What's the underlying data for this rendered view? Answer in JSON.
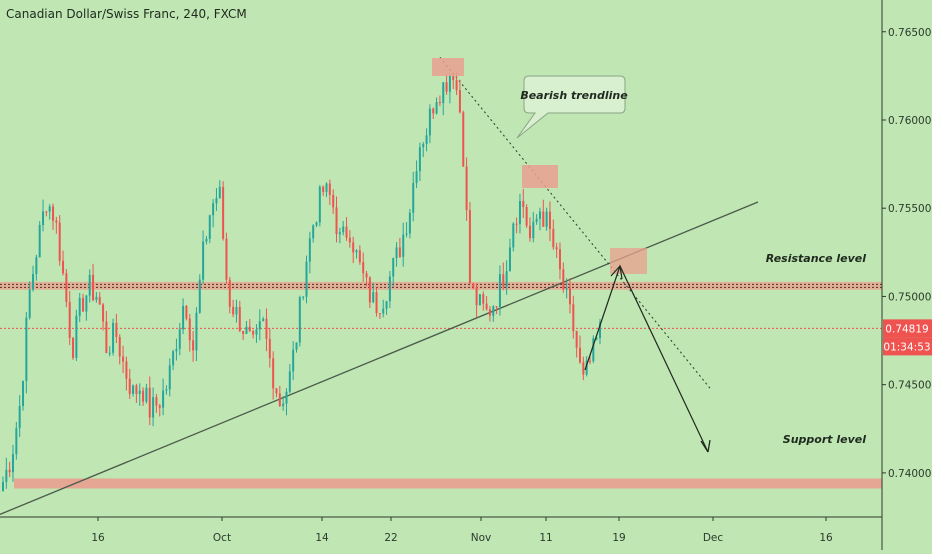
{
  "header": {
    "symbol_title": "Canadian Dollar/Swiss Franc, 240, FXCM"
  },
  "colors": {
    "background": "#bfe6b3",
    "bull": "#26a69a",
    "bear": "#ef5350",
    "zone": "#e9a08f",
    "price_tag": "#ef5350",
    "axis_text": "#2d3a2d"
  },
  "chart_data": {
    "type": "candlestick",
    "title": "Canadian Dollar/Swiss Franc, 240, FXCM",
    "ylim": [
      0.7375,
      0.7668
    ],
    "y_ticks": [
      0.74,
      0.745,
      0.75,
      0.755,
      0.76,
      0.765
    ],
    "y_tick_labels": [
      "0.74000",
      "0.74500",
      "0.75000",
      "0.75500",
      "0.76000",
      "0.76500"
    ],
    "x_ticks": [
      "16",
      "Oct",
      "14",
      "22",
      "Nov",
      "11",
      "19",
      "Dec",
      "16"
    ],
    "grid": false,
    "current_price": 0.74819,
    "current_price_label": "0.74819",
    "countdown_label": "01:34:53",
    "key_closes": [
      0.7395,
      0.741,
      0.744,
      0.75,
      0.753,
      0.7555,
      0.7545,
      0.751,
      0.747,
      0.7495,
      0.7505,
      0.75,
      0.747,
      0.748,
      0.746,
      0.7445,
      0.745,
      0.7435,
      0.744,
      0.745,
      0.7475,
      0.75,
      0.747,
      0.752,
      0.755,
      0.756,
      0.75,
      0.749,
      0.748,
      0.747,
      0.7485,
      0.746,
      0.744,
      0.745,
      0.748,
      0.752,
      0.7545,
      0.756,
      0.7555,
      0.753,
      0.754,
      0.752,
      0.7505,
      0.7495,
      0.75,
      0.7515,
      0.753,
      0.755,
      0.7585,
      0.7595,
      0.7615,
      0.762,
      0.763,
      0.76,
      0.7505,
      0.7495,
      0.749,
      0.75,
      0.7515,
      0.7545,
      0.7555,
      0.753,
      0.755,
      0.754,
      0.752,
      0.75,
      0.748,
      0.745,
      0.7465,
      0.748
    ],
    "annotations": {
      "resistance_label": "Resistance level",
      "resistance_level": 0.7506,
      "support_label": "Support level",
      "support_level": 0.7394,
      "trendline_callout": "Bearish trendline"
    }
  }
}
